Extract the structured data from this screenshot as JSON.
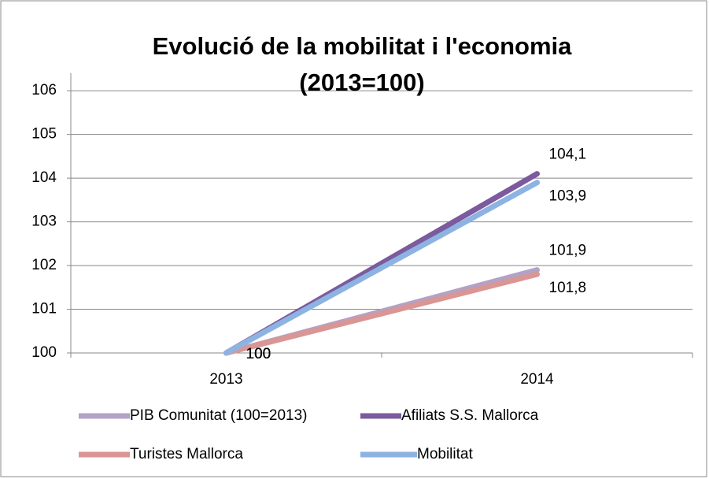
{
  "chart_data": {
    "type": "line",
    "title": "Evolució de la mobilitat i l'economia (2013=100)",
    "categories": [
      "2013",
      "2014"
    ],
    "series": [
      {
        "name": "PIB Comunitat (100=2013)",
        "color": "#b3a2c7",
        "values": [
          100,
          101.9
        ],
        "value_labels": [
          "100",
          "101,9"
        ]
      },
      {
        "name": "Afiliats S.S. Mallorca",
        "color": "#7b5b9e",
        "values": [
          100,
          104.1
        ],
        "value_labels": [
          "100",
          "104,1"
        ]
      },
      {
        "name": "Turistes Mallorca",
        "color": "#d99694",
        "values": [
          100,
          101.8
        ],
        "value_labels": [
          "100",
          "101,8"
        ]
      },
      {
        "name": "Mobilitat",
        "color": "#8db3e2",
        "values": [
          100,
          103.9
        ],
        "value_labels": [
          "100",
          "103,9"
        ]
      }
    ],
    "ylim": [
      100,
      106.4
    ],
    "yticks": [
      100,
      101,
      102,
      103,
      104,
      105,
      106
    ],
    "grid": true
  }
}
